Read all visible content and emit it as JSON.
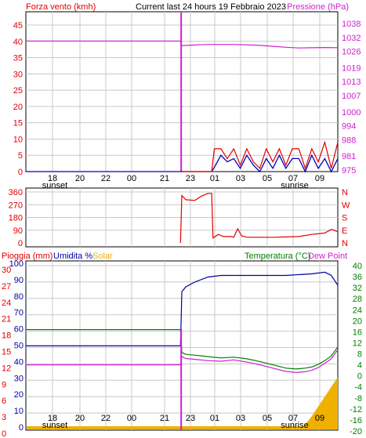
{
  "title": "Current last 24 hours 19 Febbraio 2023",
  "colors": {
    "wind": "#e00000",
    "pressure": "#d020d0",
    "gust": "#0000c0",
    "temperature": "#008000",
    "dew": "#d020d0",
    "humidity": "#0000a0",
    "rain": "#0000a0",
    "solar": "#f0b000",
    "frame": "#000000",
    "grid": "#c8c8c8"
  },
  "chart_data": [
    {
      "type": "line",
      "id": "wind-pressure",
      "left_label": "Forza vento (kmh)",
      "right_label": "Pressione (hPa)",
      "x_ticks": [
        "18",
        "20",
        "22",
        "00",
        "21",
        "23",
        "01",
        "03",
        "05",
        "07",
        "09"
      ],
      "sun_labels": {
        "sunset": "sunset",
        "sunrise": "sunrise"
      },
      "left_axis": {
        "ticks": [
          "0",
          "5",
          "10",
          "15",
          "20",
          "25",
          "30",
          "35",
          "40",
          "45"
        ],
        "ylim": [
          0,
          45
        ]
      },
      "right_axis": {
        "ticks": [
          "975",
          "981",
          "988",
          "994",
          "1000",
          "1007",
          "1013",
          "1019",
          "1026",
          "1032",
          "1038"
        ],
        "ylim": [
          975,
          1038
        ]
      },
      "series": [
        {
          "key": "pressure",
          "x": [
            0,
            11.9,
            12.0,
            14,
            16,
            18,
            19,
            20,
            21,
            22,
            23,
            24
          ],
          "values": [
            1030.5,
            1030.5,
            1028.5,
            1029.0,
            1029.0,
            1028.6,
            1028.2,
            1027.8,
            1027.5,
            1027.6,
            1027.7,
            1027.6
          ]
        },
        {
          "key": "wind",
          "x": [
            12.0,
            14.3,
            14.5,
            15,
            15.5,
            16,
            16.5,
            17,
            17.5,
            18,
            18.5,
            19,
            19.5,
            20,
            20.5,
            21,
            21.5,
            22,
            22.5,
            23,
            23.5,
            24
          ],
          "values": [
            0,
            0,
            7,
            7,
            4,
            7,
            2,
            7,
            3,
            1,
            7,
            3,
            7,
            2,
            7,
            7,
            1,
            7,
            3,
            9,
            1,
            9
          ]
        },
        {
          "key": "gust",
          "x": [
            0,
            14.3,
            14.6,
            15,
            15.5,
            16,
            16.5,
            17,
            17.5,
            18,
            18.5,
            19,
            19.5,
            20,
            20.5,
            21,
            21.5,
            22,
            22.5,
            23,
            23.5,
            24
          ],
          "values": [
            0,
            0,
            2,
            5,
            3,
            4,
            1,
            5,
            2,
            0,
            4,
            1,
            5,
            1,
            4,
            4,
            0,
            5,
            1,
            4,
            0,
            4
          ]
        }
      ]
    },
    {
      "type": "line",
      "id": "wind-direction",
      "left_axis": {
        "ticks": [
          "0",
          "90",
          "180",
          "270",
          "360"
        ],
        "ylim": [
          0,
          360
        ]
      },
      "right_labels": [
        "N",
        "W",
        "S",
        "E",
        "N"
      ],
      "series": [
        {
          "key": "wind",
          "x": [
            11.9,
            12.0,
            12.3,
            13.0,
            13.5,
            14.0,
            14.3,
            14.4,
            14.8,
            15.2,
            15.8,
            16.0,
            16.3,
            16.6,
            17.0,
            19.0,
            21.0,
            22.0,
            23.0,
            23.5,
            24.0
          ],
          "values": [
            0,
            335,
            305,
            300,
            330,
            350,
            350,
            35,
            60,
            45,
            45,
            40,
            100,
            50,
            40,
            40,
            45,
            60,
            70,
            95,
            80
          ]
        }
      ]
    },
    {
      "type": "line",
      "id": "temp-humidity-rain-solar",
      "labels": {
        "rain": "Pioggia (mm)",
        "humidity": "Umidita %",
        "solar": "Solar",
        "temperature": "Temperatura (°C)",
        "dew": "Dew Point"
      },
      "humidity_axis": {
        "ticks": [
          "0",
          "10",
          "20",
          "30",
          "40",
          "50",
          "60",
          "70",
          "80",
          "90",
          "100"
        ],
        "ylim": [
          0,
          100
        ]
      },
      "rain_axis": {
        "ticks": [
          "0",
          "3",
          "6",
          "9",
          "12",
          "15",
          "18",
          "21",
          "24",
          "27",
          "30"
        ],
        "ylim": [
          0,
          30
        ]
      },
      "temp_axis": {
        "ticks": [
          "-20",
          "-16",
          "-12",
          "-8",
          "-4",
          "0",
          "4",
          "8",
          "12",
          "16",
          "20",
          "24",
          "28",
          "32",
          "36",
          "40"
        ],
        "ylim": [
          -20,
          40
        ]
      },
      "series": [
        {
          "key": "humidity",
          "x": [
            0,
            11.9,
            12.0,
            12.3,
            13,
            14,
            15,
            16,
            18,
            20,
            22,
            23,
            23.5,
            24
          ],
          "values": [
            51,
            51,
            84,
            87,
            90,
            93,
            94,
            94,
            94,
            94,
            95,
            96,
            94,
            88
          ]
        },
        {
          "key": "temperature",
          "x": [
            0,
            11.9,
            12.0,
            12.3,
            13,
            14,
            15,
            16,
            17,
            18,
            19,
            20,
            20.8,
            21.5,
            22,
            22.5,
            23,
            23.5,
            24
          ],
          "values": [
            16.8,
            16.8,
            8.5,
            7.8,
            7.5,
            7.0,
            6.5,
            6.8,
            6.2,
            5.2,
            4.0,
            2.8,
            2.5,
            2.8,
            3.2,
            4.2,
            5.5,
            7.2,
            10.5
          ]
        },
        {
          "key": "dew",
          "x": [
            0,
            11.9,
            12.0,
            12.3,
            13,
            14,
            15,
            16,
            17,
            18,
            19,
            20,
            20.8,
            21.5,
            22,
            22.5,
            23,
            23.5,
            24
          ],
          "values": [
            4.0,
            4.0,
            7.0,
            6.3,
            6.0,
            5.5,
            5.3,
            5.8,
            5.0,
            4.0,
            2.8,
            1.6,
            1.2,
            1.5,
            2.0,
            3.0,
            4.5,
            6.2,
            9.5
          ]
        },
        {
          "key": "rain",
          "x": [
            0,
            24
          ],
          "values": [
            0,
            0
          ]
        },
        {
          "key": "solar",
          "x": [
            21.2,
            21.5,
            22,
            22.5,
            23,
            23.5,
            24
          ],
          "values": [
            0,
            3,
            8,
            14,
            20,
            26,
            32
          ]
        }
      ]
    }
  ]
}
